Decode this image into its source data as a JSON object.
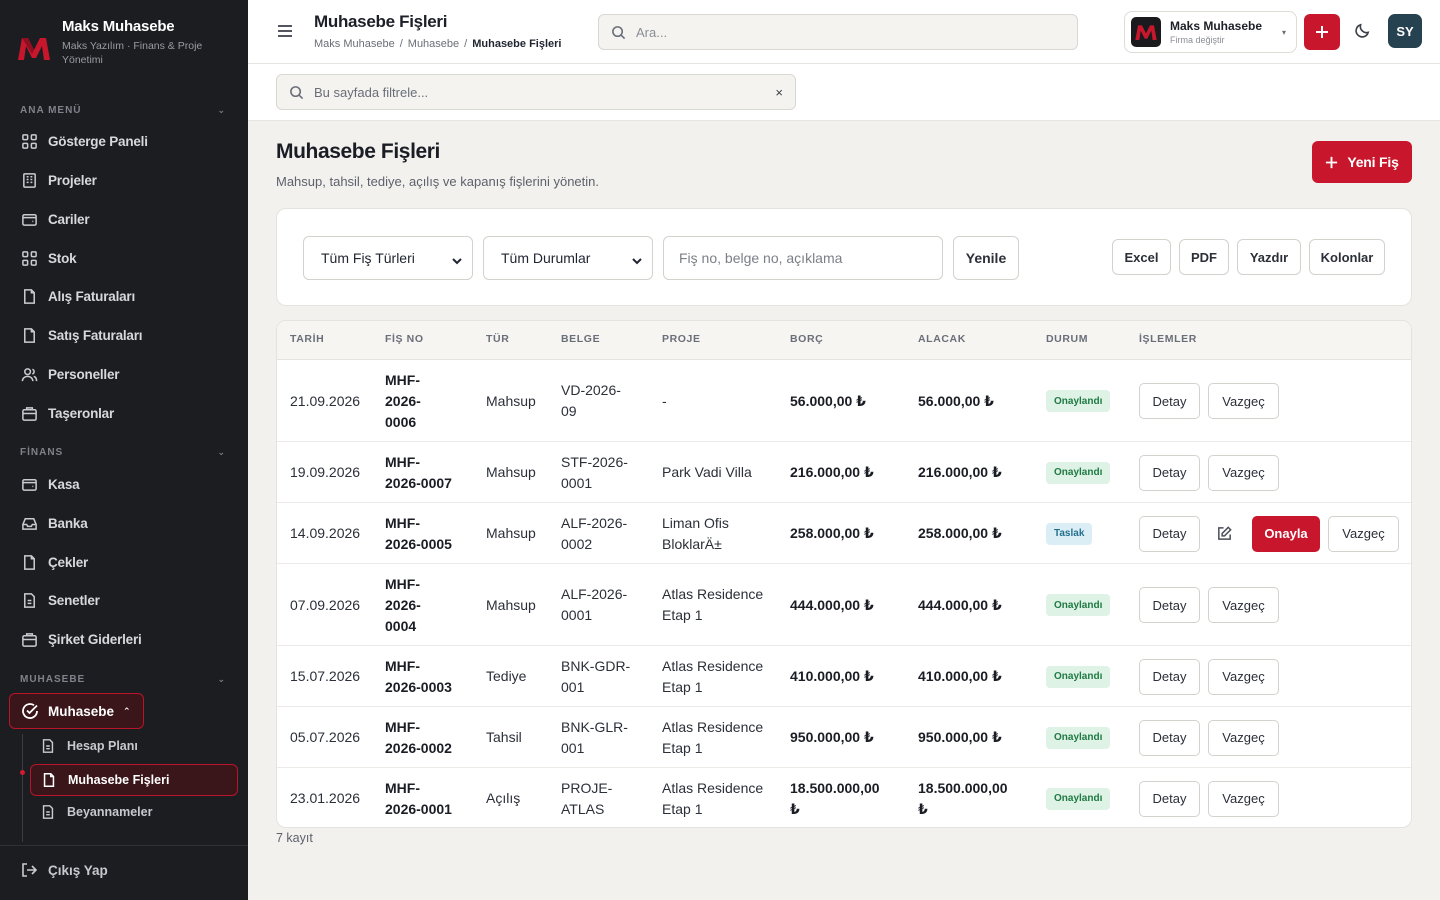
{
  "sidebar": {
    "brand_name": "Maks Muhasebe",
    "brand_sub": "Maks Yazılım · Finans & Proje Yönetimi",
    "sections": {
      "main": "ANA MENÜ",
      "finance": "FİNANS",
      "accounting": "MUHASEBE"
    },
    "main_items": [
      "Gösterge Paneli",
      "Projeler",
      "Cariler",
      "Stok",
      "Alış Faturaları",
      "Satış Faturaları",
      "Personeller",
      "Taşeronlar"
    ],
    "finance_items": [
      "Kasa",
      "Banka",
      "Çekler",
      "Senetler",
      "Şirket Giderleri"
    ],
    "accounting_active": "Muhasebe",
    "accounting_sub": [
      "Hesap Planı",
      "Muhasebe Fişleri",
      "Beyannameler"
    ],
    "logout": "Çıkış Yap"
  },
  "topbar": {
    "title": "Muhasebe Fişleri",
    "breadcrumb": [
      "Maks Muhasebe",
      "Muhasebe",
      "Muhasebe Fişleri"
    ],
    "breadcrumb_sep": "/",
    "search_placeholder": "Ara...",
    "firm_name": "Maks Muhasebe",
    "firm_sub": "Firma değiştir",
    "avatar_initials": "SY"
  },
  "filterbar": {
    "placeholder": "Bu sayfada filtrele...",
    "clear": "×"
  },
  "page": {
    "title": "Muhasebe Fişleri",
    "subtitle": "Mahsup, tahsil, tediye, açılış ve kapanış fişlerini yönetin.",
    "new_button": "Yeni Fiş"
  },
  "toolbar": {
    "type_select": "Tüm Fiş Türleri",
    "status_select": "Tüm Durumlar",
    "search_placeholder": "Fiş no, belge no, açıklama",
    "refresh": "Yenile",
    "excel": "Excel",
    "pdf": "PDF",
    "print": "Yazdır",
    "columns": "Kolonlar"
  },
  "table": {
    "headers": [
      "TARİH",
      "FİŞ NO",
      "TÜR",
      "BELGE",
      "PROJE",
      "BORÇ",
      "ALACAK",
      "DURUM",
      "İŞLEMLER"
    ],
    "rows": [
      {
        "date": "21.09.2026",
        "no": "MHF-\n2026-\n0006",
        "type": "Mahsup",
        "doc": "VD-2026-\n09",
        "project": "-",
        "debit": "56.000,00 ₺",
        "credit": "56.000,00 ₺",
        "status": "Onaylandı",
        "detail": "Detay",
        "cancel": "Vazgeç"
      },
      {
        "date": "19.09.2026",
        "no": "MHF-\n2026-0007",
        "type": "Mahsup",
        "doc": "STF-2026-\n0001",
        "project": "Park Vadi Villa",
        "debit": "216.000,00 ₺",
        "credit": "216.000,00 ₺",
        "status": "Onaylandı",
        "detail": "Detay",
        "cancel": "Vazgeç"
      },
      {
        "date": "14.09.2026",
        "no": "MHF-\n2026-0005",
        "type": "Mahsup",
        "doc": "ALF-2026-\n0002",
        "project": "Liman Ofis\nBloklarÄ±",
        "debit": "258.000,00 ₺",
        "credit": "258.000,00 ₺",
        "status": "Taslak",
        "detail": "Detay",
        "approve": "Onayla",
        "cancel": "Vazgeç"
      },
      {
        "date": "07.09.2026",
        "no": "MHF-\n2026-\n0004",
        "type": "Mahsup",
        "doc": "ALF-2026-\n0001",
        "project": "Atlas Residence\nEtap 1",
        "debit": "444.000,00 ₺",
        "credit": "444.000,00 ₺",
        "status": "Onaylandı",
        "detail": "Detay",
        "cancel": "Vazgeç"
      },
      {
        "date": "15.07.2026",
        "no": "MHF-\n2026-0003",
        "type": "Tediye",
        "doc": "BNK-GDR-\n001",
        "project": "Atlas Residence\nEtap 1",
        "debit": "410.000,00 ₺",
        "credit": "410.000,00 ₺",
        "status": "Onaylandı",
        "detail": "Detay",
        "cancel": "Vazgeç"
      },
      {
        "date": "05.07.2026",
        "no": "MHF-\n2026-0002",
        "type": "Tahsil",
        "doc": "BNK-GLR-\n001",
        "project": "Atlas Residence\nEtap 1",
        "debit": "950.000,00 ₺",
        "credit": "950.000,00 ₺",
        "status": "Onaylandı",
        "detail": "Detay",
        "cancel": "Vazgeç"
      },
      {
        "date": "23.01.2026",
        "no": "MHF-\n2026-0001",
        "type": "Açılış",
        "doc": "PROJE-\nATLAS",
        "project": "Atlas Residence\nEtap 1",
        "debit": "18.500.000,00\n₺",
        "credit": "18.500.000,00\n₺",
        "status": "Onaylandı",
        "detail": "Detay",
        "cancel": "Vazgeç"
      }
    ]
  },
  "footer": {
    "count": "7 kayıt"
  },
  "colors": {
    "accent": "#c8172d",
    "sidebar": "#1c1d21",
    "approved_bg": "#dff2e6",
    "draft_bg": "#dceef5"
  }
}
